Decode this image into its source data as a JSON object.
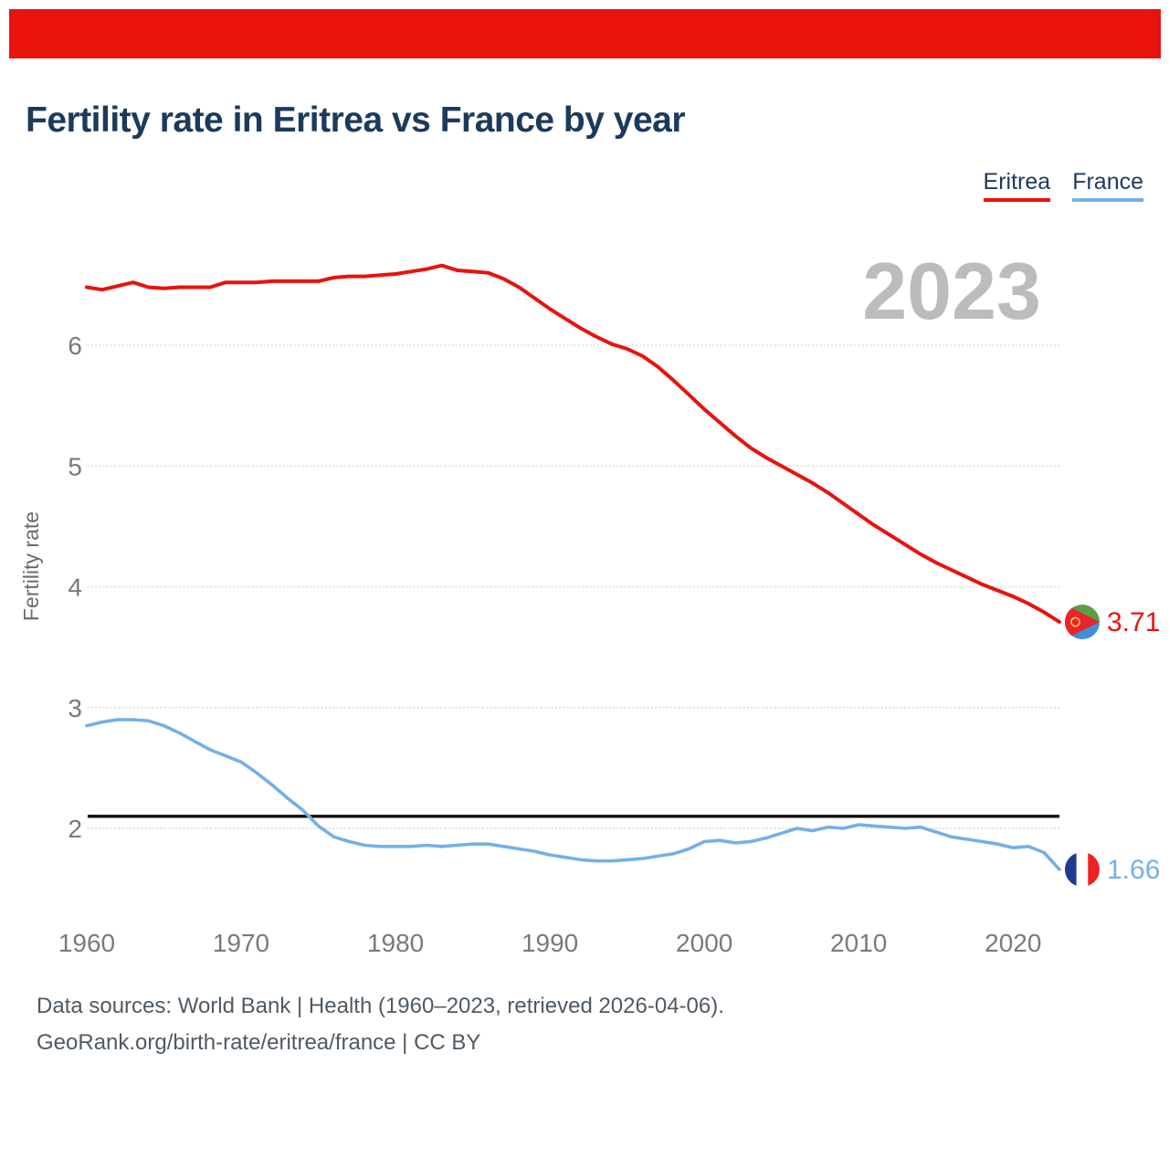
{
  "top_banner": {
    "color": "#e8130c"
  },
  "header": {
    "title": "Fertility rate in Eritrea vs France by year"
  },
  "legend": {
    "items": [
      {
        "label": "Eritrea",
        "color": "#e8130c"
      },
      {
        "label": "France",
        "color": "#74b0e6"
      }
    ]
  },
  "chart_data": {
    "type": "line",
    "title": "Fertility rate in Eritrea vs France by year",
    "xlabel": "",
    "ylabel": "Fertility rate",
    "watermark_year": "2023",
    "x_range": [
      1960,
      2023
    ],
    "ylim": [
      1.5,
      6.9
    ],
    "yticks": [
      2,
      3,
      4,
      5,
      6
    ],
    "xticks": [
      1960,
      1970,
      1980,
      1990,
      2000,
      2010,
      2020
    ],
    "grid": "horizontal-dotted",
    "legend_position": "top-right",
    "replacement_line": {
      "value": 2.1,
      "color": "#0d0d0d"
    },
    "x": [
      1960,
      1961,
      1962,
      1963,
      1964,
      1965,
      1966,
      1967,
      1968,
      1969,
      1970,
      1971,
      1972,
      1973,
      1974,
      1975,
      1976,
      1977,
      1978,
      1979,
      1980,
      1981,
      1982,
      1983,
      1984,
      1985,
      1986,
      1987,
      1988,
      1989,
      1990,
      1991,
      1992,
      1993,
      1994,
      1995,
      1996,
      1997,
      1998,
      1999,
      2000,
      2001,
      2002,
      2003,
      2004,
      2005,
      2006,
      2007,
      2008,
      2009,
      2010,
      2011,
      2012,
      2013,
      2014,
      2015,
      2016,
      2017,
      2018,
      2019,
      2020,
      2021,
      2022,
      2023
    ],
    "series": [
      {
        "name": "Eritrea",
        "color": "#e8130c",
        "end_label": "3.71",
        "values": [
          6.48,
          6.46,
          6.49,
          6.52,
          6.48,
          6.47,
          6.48,
          6.48,
          6.48,
          6.52,
          6.52,
          6.52,
          6.53,
          6.53,
          6.53,
          6.53,
          6.56,
          6.57,
          6.57,
          6.58,
          6.59,
          6.61,
          6.63,
          6.66,
          6.62,
          6.61,
          6.6,
          6.55,
          6.48,
          6.39,
          6.3,
          6.22,
          6.14,
          6.07,
          6.01,
          5.97,
          5.91,
          5.82,
          5.71,
          5.59,
          5.47,
          5.36,
          5.25,
          5.15,
          5.07,
          5.0,
          4.93,
          4.86,
          4.78,
          4.69,
          4.6,
          4.51,
          4.43,
          4.35,
          4.27,
          4.2,
          4.14,
          4.08,
          4.02,
          3.97,
          3.92,
          3.86,
          3.79,
          3.71
        ]
      },
      {
        "name": "France",
        "color": "#74b0e6",
        "end_label": "1.66",
        "values": [
          2.85,
          2.88,
          2.9,
          2.9,
          2.89,
          2.85,
          2.79,
          2.72,
          2.65,
          2.6,
          2.55,
          2.46,
          2.36,
          2.25,
          2.15,
          2.02,
          1.93,
          1.89,
          1.86,
          1.85,
          1.85,
          1.85,
          1.86,
          1.85,
          1.86,
          1.87,
          1.87,
          1.85,
          1.83,
          1.81,
          1.78,
          1.76,
          1.74,
          1.73,
          1.73,
          1.74,
          1.75,
          1.77,
          1.79,
          1.83,
          1.89,
          1.9,
          1.88,
          1.89,
          1.92,
          1.96,
          2.0,
          1.98,
          2.01,
          2.0,
          2.03,
          2.02,
          2.01,
          2.0,
          2.01,
          1.97,
          1.93,
          1.91,
          1.89,
          1.87,
          1.84,
          1.85,
          1.8,
          1.66
        ]
      }
    ]
  },
  "footer": {
    "lines": [
      "Data sources: World Bank | Health (1960–2023, retrieved 2026-04-06).",
      "GeoRank.org/birth-rate/eritrea/france | CC BY"
    ]
  }
}
